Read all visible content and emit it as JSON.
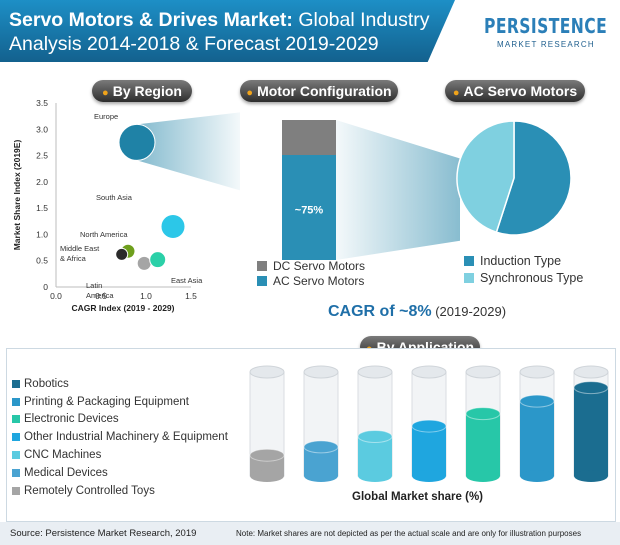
{
  "header": {
    "title_bold": "Servo Motors & Drives Market:",
    "title_rest": " Global Industry Analysis 2014-2018 & Forecast 2019-2029",
    "logo_main": "PERSISTENCE",
    "logo_sub": "MARKET RESEARCH"
  },
  "sections": {
    "region": "By Region",
    "motor": "Motor Configuration",
    "ac": "AC Servo Motors",
    "application": "By Application"
  },
  "colors": {
    "region_europe": "#1f82a6",
    "region_north_america": "#6e9f1c",
    "region_mea": "#2b2b2b",
    "region_latin_america": "#a5a5a5",
    "region_east_asia": "#2bd0a8",
    "region_south_asia": "#2cc7e8",
    "dc": "#7f7f7f",
    "ac": "#2a8fb5",
    "induction": "#2a8fb5",
    "synchronous": "#7fd0e0",
    "robotics": "#1b6d90",
    "printing": "#2b97c9",
    "electronic": "#27c7a8",
    "other_industrial": "#1fa6df",
    "cnc": "#5bcbe0",
    "medical": "#4aa3d1",
    "toys": "#a5a5a5"
  },
  "chart_data": [
    {
      "type": "scatter",
      "title": "By Region",
      "xlabel": "CAGR Index (2019 - 2029)",
      "ylabel": "Market Share Index (2019E)",
      "xlim": [
        0,
        1.5
      ],
      "ylim": [
        0,
        3.5
      ],
      "xticks": [
        "0.0",
        "0.5",
        "1.0",
        "1.5"
      ],
      "yticks": [
        "0",
        "0.5",
        "1.0",
        "1.5",
        "2.0",
        "2.5",
        "3.0",
        "3.5"
      ],
      "points": [
        {
          "label": "Europe",
          "x": 0.9,
          "y": 2.75,
          "size": 3.0
        },
        {
          "label": "South Asia",
          "x": 1.3,
          "y": 1.15,
          "size": 1.2
        },
        {
          "label": "North America",
          "x": 0.8,
          "y": 0.68,
          "size": 0.9
        },
        {
          "label": "Middle East & Africa",
          "x": 0.73,
          "y": 0.62,
          "size": 0.7
        },
        {
          "label": "Latin America",
          "x": 0.98,
          "y": 0.45,
          "size": 0.8
        },
        {
          "label": "East Asia",
          "x": 1.13,
          "y": 0.52,
          "size": 0.9
        }
      ]
    },
    {
      "type": "bar",
      "title": "Motor Configuration",
      "categories": [
        "Motor Configuration"
      ],
      "series": [
        {
          "name": "AC Servo Motors",
          "values": [
            75
          ]
        },
        {
          "name": "DC Servo Motors",
          "values": [
            25
          ]
        }
      ],
      "annotations": [
        "~75%"
      ]
    },
    {
      "type": "pie",
      "title": "AC Servo Motors",
      "labels": [
        "Induction Type",
        "Synchronous Type"
      ],
      "values": [
        55,
        45
      ]
    },
    {
      "type": "bar",
      "title": "By Application",
      "xlabel": "Global Market share (%)",
      "categories": [
        "Remotely Controlled Toys",
        "Medical Devices",
        "CNC Machines",
        "Other Industrial Machinery & Equipment",
        "Electronic Devices",
        "Printing & Packaging Equipment",
        "Robotics"
      ],
      "values": [
        20,
        28,
        38,
        48,
        60,
        72,
        85
      ]
    }
  ],
  "motor_chart": {
    "ac_label": "~75%"
  },
  "cagr": {
    "text": "CAGR of ~8%",
    "period": " (2019-2029)"
  },
  "application": {
    "legend": [
      {
        "label": "Robotics",
        "color_key": "robotics"
      },
      {
        "label": "Printing & Packaging Equipment",
        "color_key": "printing"
      },
      {
        "label": "Electronic Devices",
        "color_key": "electronic"
      },
      {
        "label": "Other Industrial Machinery & Equipment",
        "color_key": "other_industrial"
      },
      {
        "label": "CNC Machines",
        "color_key": "cnc"
      },
      {
        "label": "Medical Devices",
        "color_key": "medical"
      },
      {
        "label": "Remotely Controlled Toys",
        "color_key": "toys"
      }
    ],
    "xlabel": "Global Market share (%)"
  },
  "footer": {
    "source": "Source: Persistence Market Research, 2019",
    "note": "Note: Market shares are not depicted as per the actual scale and are only for illustration purposes"
  }
}
